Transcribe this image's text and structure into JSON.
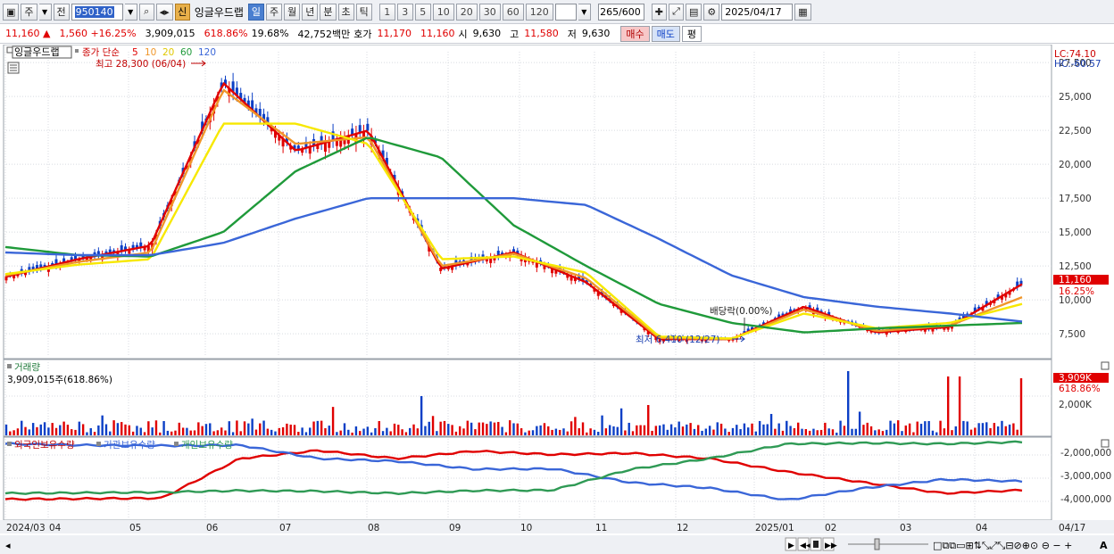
{
  "toolbar": {
    "type_label": "주",
    "mode_label": "전",
    "code": "950140",
    "name_badge": "신",
    "stock_name": "잉글우드랩",
    "periods": [
      "일",
      "주",
      "월",
      "년",
      "분",
      "초",
      "틱"
    ],
    "active_period": "일",
    "minute_units": [
      "1",
      "3",
      "5",
      "10",
      "20",
      "30",
      "60",
      "120"
    ],
    "bar_count": "265/600",
    "date": "2025/04/17"
  },
  "quote": {
    "price": "11,160",
    "direction": "▲",
    "change": "1,560",
    "change_pct": "+16.25%",
    "volume": "3,909,015",
    "volume_ratio": "618.86%",
    "turnover": "19.68%",
    "amount": "42,752백만",
    "bid_label": "호가",
    "bid1": "11,170",
    "bid2": "11,160",
    "open_label": "시",
    "open": "9,630",
    "high_label": "고",
    "high": "11,580",
    "low_label": "저",
    "low": "9,630",
    "buy_label": "매수",
    "sell_label": "매도",
    "avg_label": "평"
  },
  "main_chart": {
    "name_tag": "잉글우드랩",
    "ma_label": "종가 단순",
    "ma_periods": [
      "5",
      "10",
      "20",
      "60",
      "120"
    ],
    "high_annot": "최고 28,300 (06/04)",
    "low_annot": "최저 6,410 (12/27)",
    "div_annot": "배당락(0.00%)",
    "lc": "LC:74.10",
    "hc": "HC:-60.57",
    "price_tag": "11,160",
    "pct_tag": "16.25%"
  },
  "volume_panel": {
    "title": "거래량",
    "value_text": "3,909,015주(618.86%)",
    "tag1": "3,909K",
    "tag2": "618.86%",
    "ytick": "2,000K"
  },
  "holdings_panel": {
    "legend": [
      "외국인보유수량",
      "기관보유수량",
      "개인보유수량"
    ],
    "yticks": [
      "-2,000,000",
      "-3,000,000",
      "-4,000,000"
    ]
  },
  "xaxis": {
    "labels": [
      "2024/03",
      "04",
      "05",
      "06",
      "07",
      "08",
      "09",
      "10",
      "11",
      "12",
      "2025/01",
      "02",
      "03",
      "04"
    ],
    "right_label": "04/17"
  },
  "colors": {
    "up": "#e00000",
    "down": "#0b3fc6",
    "ma5": "#e00000",
    "ma10": "#f0962a",
    "ma20": "#f7e800",
    "ma60": "#1f9a3a",
    "ma120": "#3a66d8",
    "foreign": "#e00000",
    "inst": "#3a66d8",
    "retail": "#2f9a55"
  },
  "chart_data": {
    "type": "line",
    "ylim": [
      5800,
      28300
    ],
    "yticks": [
      7500,
      10000,
      12500,
      15000,
      17500,
      20000,
      22500,
      25000,
      27500
    ],
    "x": [
      "2024/03",
      "04",
      "05",
      "06",
      "07",
      "08",
      "09",
      "10",
      "11",
      "12",
      "2025/01",
      "02",
      "03",
      "04",
      "04/17"
    ],
    "series": [
      {
        "name": "5",
        "values": [
          11700,
          13000,
          14000,
          26000,
          21000,
          22500,
          12300,
          13500,
          11300,
          7100,
          7100,
          9500,
          7600,
          8000,
          11160
        ]
      },
      {
        "name": "10",
        "values": [
          11800,
          12800,
          13500,
          25500,
          21500,
          22000,
          12500,
          13400,
          11600,
          7200,
          7100,
          9300,
          7700,
          8100,
          10200
        ]
      },
      {
        "name": "20",
        "values": [
          11900,
          12600,
          13000,
          23000,
          23000,
          21500,
          13000,
          13200,
          12000,
          7300,
          7150,
          9000,
          7900,
          8300,
          9700
        ]
      },
      {
        "name": "60",
        "values": [
          13900,
          13300,
          13200,
          15000,
          19500,
          22000,
          20500,
          15500,
          12500,
          9700,
          8300,
          7600,
          7900,
          8100,
          8300
        ]
      },
      {
        "name": "120",
        "values": [
          13500,
          13300,
          13300,
          14200,
          16000,
          17500,
          17500,
          17500,
          17000,
          14500,
          11800,
          10200,
          9500,
          9000,
          8400
        ]
      }
    ]
  }
}
